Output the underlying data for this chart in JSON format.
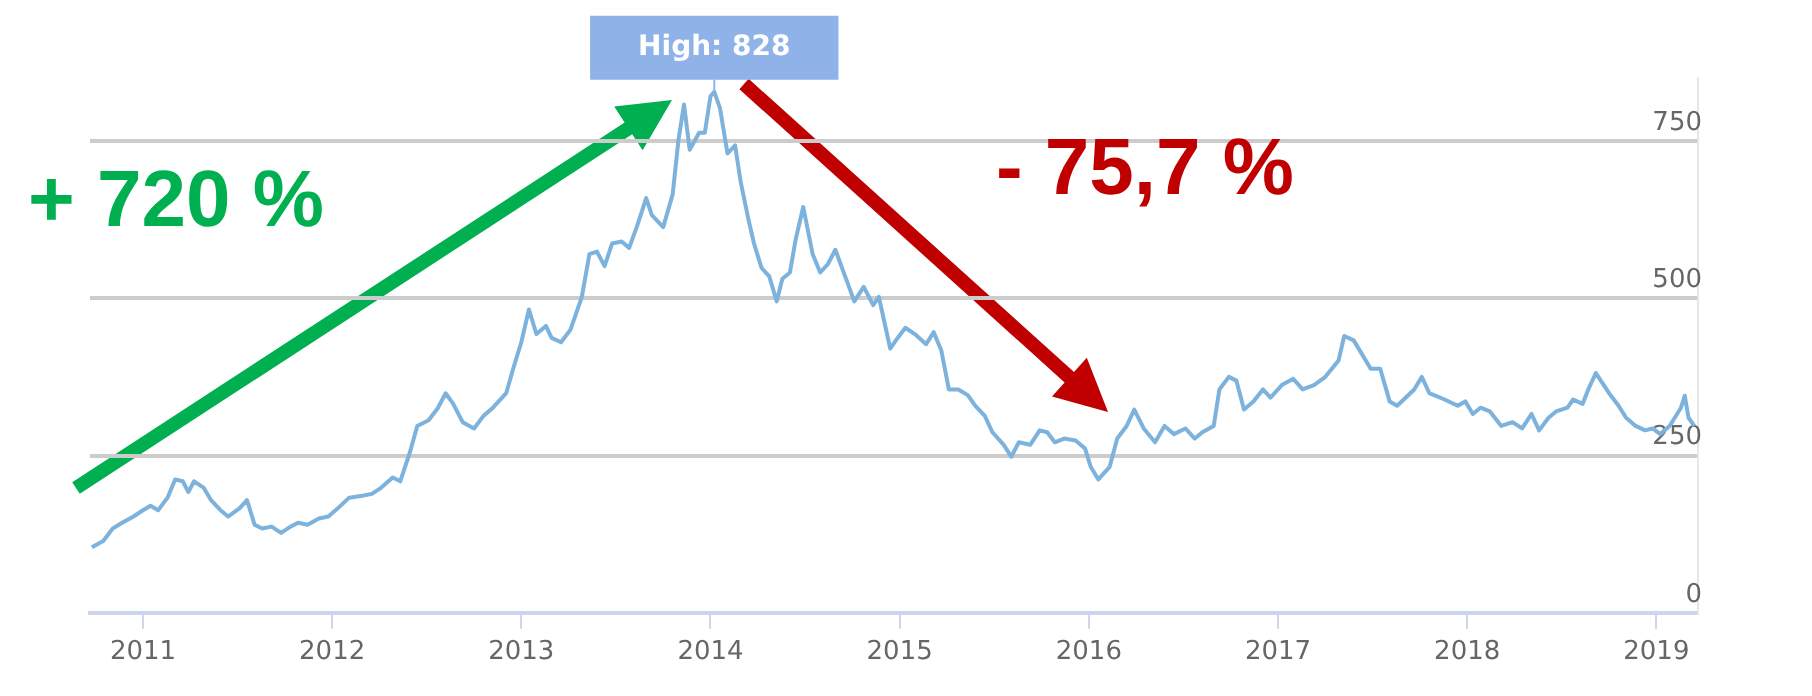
{
  "chart_data": {
    "type": "line",
    "x": [
      2010.73,
      2010.79,
      2010.84,
      2010.89,
      2010.95,
      2011.0,
      2011.04,
      2011.08,
      2011.13,
      2011.17,
      2011.21,
      2011.24,
      2011.27,
      2011.32,
      2011.36,
      2011.41,
      2011.45,
      2011.51,
      2011.55,
      2011.59,
      2011.63,
      2011.68,
      2011.73,
      2011.78,
      2011.82,
      2011.87,
      2011.93,
      2011.98,
      2012.03,
      2012.09,
      2012.16,
      2012.21,
      2012.26,
      2012.32,
      2012.36,
      2012.41,
      2012.45,
      2012.51,
      2012.56,
      2012.6,
      2012.64,
      2012.69,
      2012.75,
      2012.8,
      2012.85,
      2012.92,
      2012.96,
      2013.0,
      2013.04,
      2013.08,
      2013.13,
      2013.16,
      2013.21,
      2013.26,
      2013.32,
      2013.36,
      2013.4,
      2013.44,
      2013.48,
      2013.53,
      2013.57,
      2013.61,
      2013.66,
      2013.69,
      2013.75,
      2013.8,
      2013.83,
      2013.86,
      2013.89,
      2013.94,
      2013.97,
      2014.0,
      2014.02,
      2014.05,
      2014.09,
      2014.13,
      2014.16,
      2014.2,
      2014.23,
      2014.27,
      2014.31,
      2014.35,
      2014.38,
      2014.42,
      2014.45,
      2014.49,
      2014.54,
      2014.58,
      2014.62,
      2014.66,
      2014.72,
      2014.76,
      2014.81,
      2014.86,
      2014.89,
      2014.95,
      2014.98,
      2015.03,
      2015.08,
      2015.14,
      2015.18,
      2015.22,
      2015.26,
      2015.31,
      2015.36,
      2015.4,
      2015.45,
      2015.49,
      2015.55,
      2015.59,
      2015.63,
      2015.69,
      2015.74,
      2015.78,
      2015.82,
      2015.87,
      2015.93,
      2015.98,
      2016.01,
      2016.05,
      2016.11,
      2016.15,
      2016.2,
      2016.24,
      2016.29,
      2016.35,
      2016.4,
      2016.45,
      2016.51,
      2016.56,
      2016.6,
      2016.66,
      2016.69,
      2016.74,
      2016.78,
      2016.82,
      2016.87,
      2016.92,
      2016.96,
      2017.02,
      2017.08,
      2017.13,
      2017.19,
      2017.25,
      2017.32,
      2017.35,
      2017.4,
      2017.45,
      2017.49,
      2017.54,
      2017.59,
      2017.63,
      2017.72,
      2017.76,
      2017.8,
      2017.88,
      2017.95,
      2017.99,
      2018.03,
      2018.07,
      2018.12,
      2018.18,
      2018.24,
      2018.29,
      2018.34,
      2018.38,
      2018.43,
      2018.47,
      2018.53,
      2018.56,
      2018.61,
      2018.64,
      2018.68,
      2018.75,
      2018.8,
      2018.84,
      2018.89,
      2018.94,
      2018.98,
      2019.02,
      2019.07,
      2019.13,
      2019.15,
      2019.17,
      2019.2
    ],
    "series": [
      {
        "color": "#7cb2dc",
        "values": [
          104,
          114,
          134,
          143,
          153,
          163,
          170,
          163,
          183,
          212,
          209,
          192,
          209,
          199,
          179,
          163,
          153,
          166,
          179,
          140,
          134,
          137,
          127,
          137,
          143,
          140,
          150,
          153,
          166,
          183,
          186,
          189,
          199,
          215,
          209,
          254,
          297,
          306,
          326,
          349,
          332,
          303,
          293,
          313,
          326,
          349,
          391,
          430,
          482,
          443,
          456,
          437,
          430,
          450,
          502,
          570,
          574,
          551,
          587,
          590,
          580,
          613,
          659,
          632,
          613,
          665,
          750,
          808,
          736,
          763,
          763,
          821,
          828,
          802,
          730,
          743,
          684,
          626,
          587,
          548,
          535,
          495,
          531,
          541,
          593,
          645,
          570,
          541,
          554,
          577,
          528,
          495,
          518,
          489,
          502,
          420,
          433,
          453,
          443,
          427,
          446,
          417,
          355,
          355,
          346,
          329,
          313,
          287,
          267,
          248,
          271,
          267,
          290,
          287,
          271,
          277,
          274,
          261,
          232,
          212,
          232,
          277,
          297,
          323,
          293,
          271,
          297,
          284,
          293,
          277,
          287,
          297,
          355,
          375,
          369,
          323,
          336,
          355,
          342,
          362,
          372,
          355,
          362,
          375,
          401,
          440,
          433,
          408,
          388,
          388,
          336,
          329,
          355,
          375,
          349,
          339,
          329,
          336,
          316,
          326,
          320,
          297,
          303,
          293,
          316,
          290,
          310,
          320,
          326,
          339,
          332,
          355,
          381,
          349,
          329,
          310,
          297,
          290,
          293,
          284,
          297,
          326,
          345,
          310,
          297
        ]
      }
    ],
    "xlim": [
      2010.72,
      2019.22
    ],
    "xticks": [
      2011,
      2012,
      2013,
      2014,
      2015,
      2016,
      2017,
      2018,
      2019
    ],
    "ylim": [
      0,
      850
    ],
    "yticks": [
      0,
      250,
      500,
      750
    ],
    "grid": "y",
    "legend": false,
    "marker": "none",
    "line_style": "solid",
    "annotations": [
      {
        "text": "High: 828",
        "x": 2014.02,
        "y": 828
      },
      "+ 720 %",
      "- 75,7 %"
    ]
  }
}
